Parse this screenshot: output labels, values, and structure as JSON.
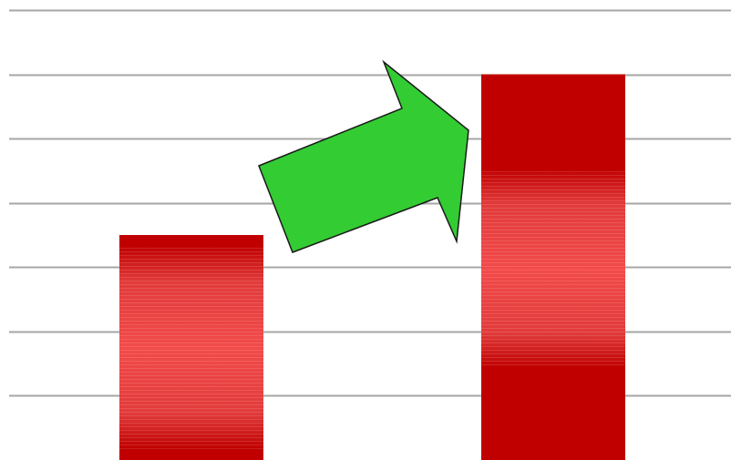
{
  "chart_data": {
    "type": "bar",
    "categories": [
      "",
      ""
    ],
    "values": [
      3.5,
      6.0
    ],
    "ylim": [
      0,
      7
    ],
    "grid": true,
    "title": "",
    "xlabel": "",
    "ylabel": ""
  },
  "annotation": {
    "icon": "up-right-arrow-icon"
  },
  "colors": {
    "bar": "#c00000",
    "bar_highlight": "#f24a4a",
    "grid": "#a6a6a6",
    "arrow_fill": "#33cc33",
    "arrow_stroke": "#1a1a1a"
  }
}
